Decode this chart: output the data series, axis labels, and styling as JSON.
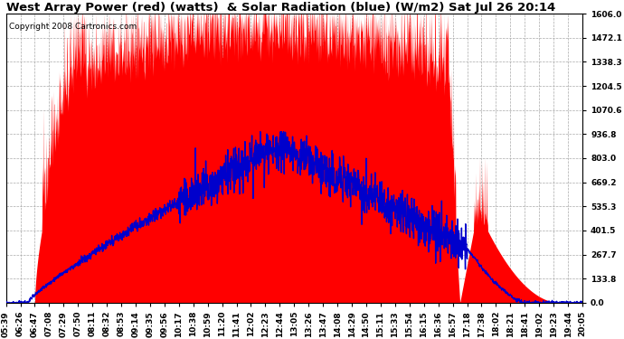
{
  "title": "West Array Power (red) (watts)  & Solar Radiation (blue) (W/m2) Sat Jul 26 20:14",
  "copyright": "Copyright 2008 Cartronics.com",
  "bg_color": "#ffffff",
  "plot_bg_color": "#ffffff",
  "grid_color": "#aaaaaa",
  "red_color": "#ff0000",
  "blue_color": "#0000cc",
  "yticks": [
    0.0,
    133.8,
    267.7,
    401.5,
    535.3,
    669.2,
    803.0,
    936.8,
    1070.6,
    1204.5,
    1338.3,
    1472.1,
    1606.0
  ],
  "ymax": 1606.0,
  "xtick_labels": [
    "05:39",
    "06:26",
    "06:47",
    "07:08",
    "07:29",
    "07:50",
    "08:11",
    "08:32",
    "08:53",
    "09:14",
    "09:35",
    "09:56",
    "10:17",
    "10:38",
    "10:59",
    "11:20",
    "11:41",
    "12:02",
    "12:23",
    "12:44",
    "13:05",
    "13:26",
    "13:47",
    "14:08",
    "14:29",
    "14:50",
    "15:11",
    "15:33",
    "15:54",
    "16:15",
    "16:36",
    "16:57",
    "17:18",
    "17:38",
    "18:02",
    "18:21",
    "18:41",
    "19:02",
    "19:23",
    "19:44",
    "20:05"
  ],
  "title_fontsize": 9.5,
  "tick_fontsize": 6.5,
  "copyright_fontsize": 6.5
}
